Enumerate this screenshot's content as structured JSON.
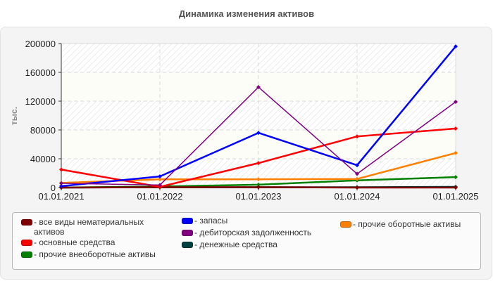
{
  "chart_data": {
    "type": "line",
    "title": "Динамика изменения активов",
    "xlabel": "",
    "ylabel": "тыс.",
    "ylim": [
      0,
      200000
    ],
    "yticks": [
      "0",
      "40000",
      "80000",
      "120000",
      "160000",
      "200000"
    ],
    "categories": [
      "01.01.2021",
      "01.01.2022",
      "01.01.2023",
      "01.01.2024",
      "01.01.2025"
    ],
    "grid": true,
    "legend_position": "bottom",
    "series": [
      {
        "name": "все виды нематериальных активов",
        "color": "#800000",
        "values": [
          0,
          500,
          500,
          0,
          0
        ]
      },
      {
        "name": "основные средства",
        "color": "#ff0000",
        "values": [
          25000,
          1000,
          34000,
          71000,
          82000
        ]
      },
      {
        "name": "прочие внеоборотные активы",
        "color": "#008000",
        "values": [
          0,
          1500,
          4000,
          10000,
          14500
        ]
      },
      {
        "name": "запасы",
        "color": "#0000ff",
        "values": [
          2000,
          15500,
          76000,
          31000,
          196000
        ]
      },
      {
        "name": "дебиторская задолженность",
        "color": "#800080",
        "values": [
          6000,
          3500,
          139500,
          19000,
          119000
        ]
      },
      {
        "name": "денежные средства",
        "color": "#004040",
        "values": [
          0,
          500,
          500,
          500,
          1000
        ]
      },
      {
        "name": "прочие оборотные активы",
        "color": "#ff8000",
        "values": [
          6500,
          11500,
          11500,
          12000,
          48000
        ]
      }
    ]
  },
  "legend": {
    "items": [
      {
        "label": "- все виды нематериальных активов",
        "color": "#800000"
      },
      {
        "label": "- основные средства",
        "color": "#ff0000"
      },
      {
        "label": "- прочие внеоборотные активы",
        "color": "#008000"
      },
      {
        "label": "- запасы",
        "color": "#0000ff"
      },
      {
        "label": "- дебиторская задолженность",
        "color": "#800080"
      },
      {
        "label": "- денежные средства",
        "color": "#004040"
      },
      {
        "label": "- прочие оборотные активы",
        "color": "#ff8000"
      }
    ]
  }
}
